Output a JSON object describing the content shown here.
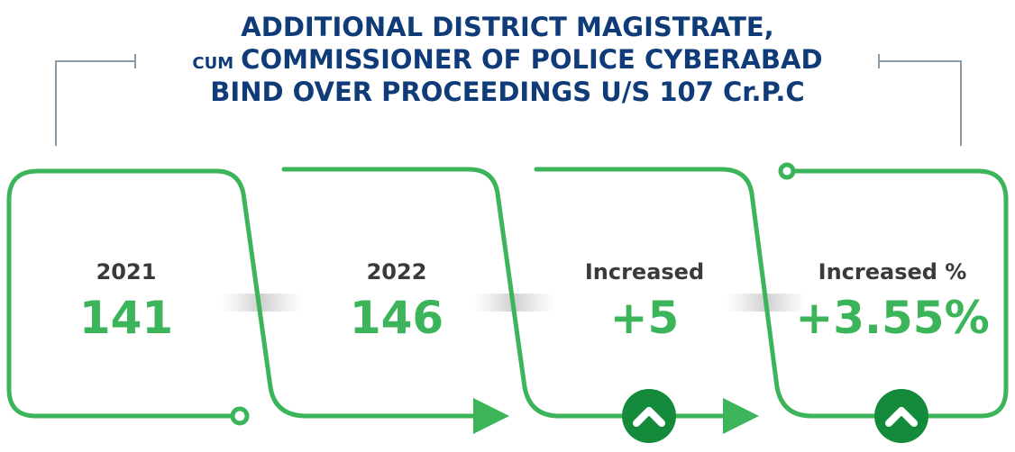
{
  "title": {
    "line1": "ADDITIONAL DISTRICT MAGISTRATE,",
    "prefix": "CUM",
    "line2": "COMMISSIONER OF POLICE CYBERABAD",
    "line3": "BIND OVER PROCEEDINGS U/S 107 Cr.P.C"
  },
  "items": [
    {
      "label": "2021",
      "value": "141"
    },
    {
      "label": "2022",
      "value": "146"
    },
    {
      "label": "Increased",
      "value": "+5"
    },
    {
      "label": "Increased %",
      "value": "+3.55%"
    }
  ]
}
